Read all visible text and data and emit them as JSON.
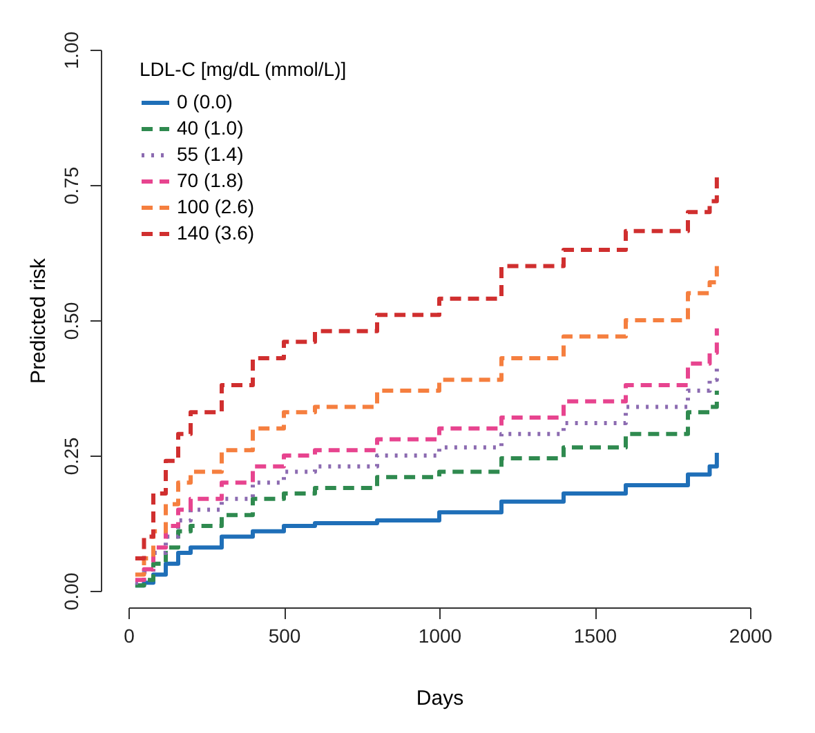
{
  "chart_data": {
    "type": "step",
    "xlabel": "Days",
    "ylabel": "Predicted risk",
    "legend_title": "LDL-C [mg/dL (mmol/L)]",
    "legend": "top left",
    "x": [
      22,
      50,
      80,
      120,
      160,
      200,
      300,
      400,
      500,
      600,
      800,
      1000,
      1200,
      1400,
      1600,
      1800,
      1870,
      1893
    ],
    "series": [
      {
        "name": "0 (0.0)",
        "color": "#1f6fb8",
        "line_style": "solid",
        "values": [
          0.01,
          0.015,
          0.03,
          0.05,
          0.07,
          0.08,
          0.1,
          0.11,
          0.12,
          0.125,
          0.13,
          0.145,
          0.165,
          0.18,
          0.195,
          0.215,
          0.23,
          0.255
        ]
      },
      {
        "name": "40 (1.0)",
        "color": "#2f8a4f",
        "line_style": "dashed",
        "values": [
          0.01,
          0.02,
          0.05,
          0.08,
          0.11,
          0.12,
          0.14,
          0.17,
          0.18,
          0.19,
          0.21,
          0.22,
          0.245,
          0.265,
          0.29,
          0.33,
          0.34,
          0.37
        ]
      },
      {
        "name": "55 (1.4)",
        "color": "#8c6bb1",
        "line_style": "dotted",
        "values": [
          0.015,
          0.035,
          0.07,
          0.1,
          0.13,
          0.15,
          0.17,
          0.2,
          0.22,
          0.23,
          0.25,
          0.265,
          0.29,
          0.31,
          0.34,
          0.37,
          0.39,
          0.415
        ]
      },
      {
        "name": "70 (1.8)",
        "color": "#e7448f",
        "line_style": "dashed",
        "values": [
          0.02,
          0.04,
          0.08,
          0.12,
          0.15,
          0.17,
          0.2,
          0.23,
          0.25,
          0.26,
          0.28,
          0.3,
          0.32,
          0.35,
          0.38,
          0.42,
          0.44,
          0.485
        ]
      },
      {
        "name": "100 (2.6)",
        "color": "#f57f3f",
        "line_style": "dashed",
        "values": [
          0.03,
          0.06,
          0.11,
          0.16,
          0.2,
          0.22,
          0.26,
          0.3,
          0.33,
          0.34,
          0.37,
          0.39,
          0.43,
          0.47,
          0.5,
          0.55,
          0.57,
          0.6
        ]
      },
      {
        "name": "140 (3.6)",
        "color": "#d02f2f",
        "line_style": "dashed",
        "values": [
          0.06,
          0.1,
          0.18,
          0.24,
          0.29,
          0.33,
          0.38,
          0.43,
          0.46,
          0.48,
          0.51,
          0.54,
          0.6,
          0.63,
          0.665,
          0.7,
          0.72,
          0.77
        ]
      }
    ],
    "xlim": [
      0,
      2000
    ],
    "xticks": [
      0,
      500,
      1000,
      1500,
      2000
    ],
    "ylim": [
      0,
      1
    ],
    "yticks": [
      {
        "value": 0,
        "label": "0.00"
      },
      {
        "value": 0.25,
        "label": "0.25"
      },
      {
        "value": 0.5,
        "label": "0.50"
      },
      {
        "value": 0.75,
        "label": "0.75"
      },
      {
        "value": 1,
        "label": "1.00"
      }
    ]
  }
}
